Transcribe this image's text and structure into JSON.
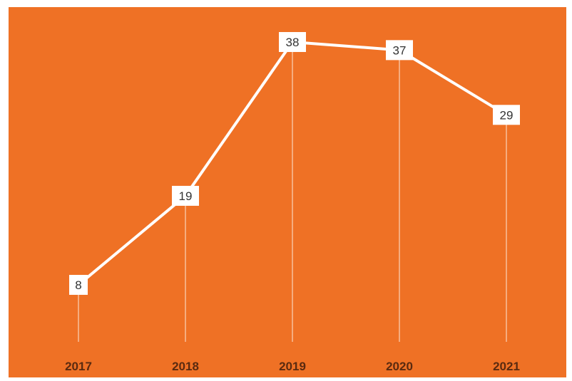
{
  "colors": {
    "background": "#ef7125",
    "line": "#ffffff",
    "label_box": "#ffffff",
    "label_text": "#333333",
    "tick_text": "#5a2a10"
  },
  "chart_data": {
    "type": "line",
    "title": "",
    "xlabel": "",
    "ylabel": "",
    "categories": [
      "2017",
      "2018",
      "2019",
      "2020",
      "2021"
    ],
    "series": [
      {
        "values": [
          8,
          19,
          38,
          37,
          29
        ]
      }
    ],
    "ylim": [
      0,
      38
    ],
    "grid": false,
    "legend": "none",
    "data_labels": true,
    "drop_lines": true
  }
}
